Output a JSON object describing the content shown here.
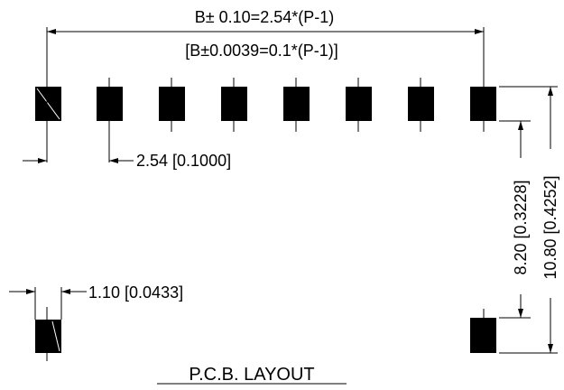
{
  "drawing": {
    "title": "P.C.B. LAYOUT",
    "dim_overall_mm": "B± 0.10=2.54*(P-1)",
    "dim_overall_in": "[B±0.0039=0.1*(P-1)]",
    "dim_pitch": "2.54 [0.1000]",
    "dim_pad_width": "1.10 [0.0433]",
    "dim_inner_vertical": "8.20 [0.3228]",
    "dim_outer_vertical": "10.80 [0.4252]"
  }
}
